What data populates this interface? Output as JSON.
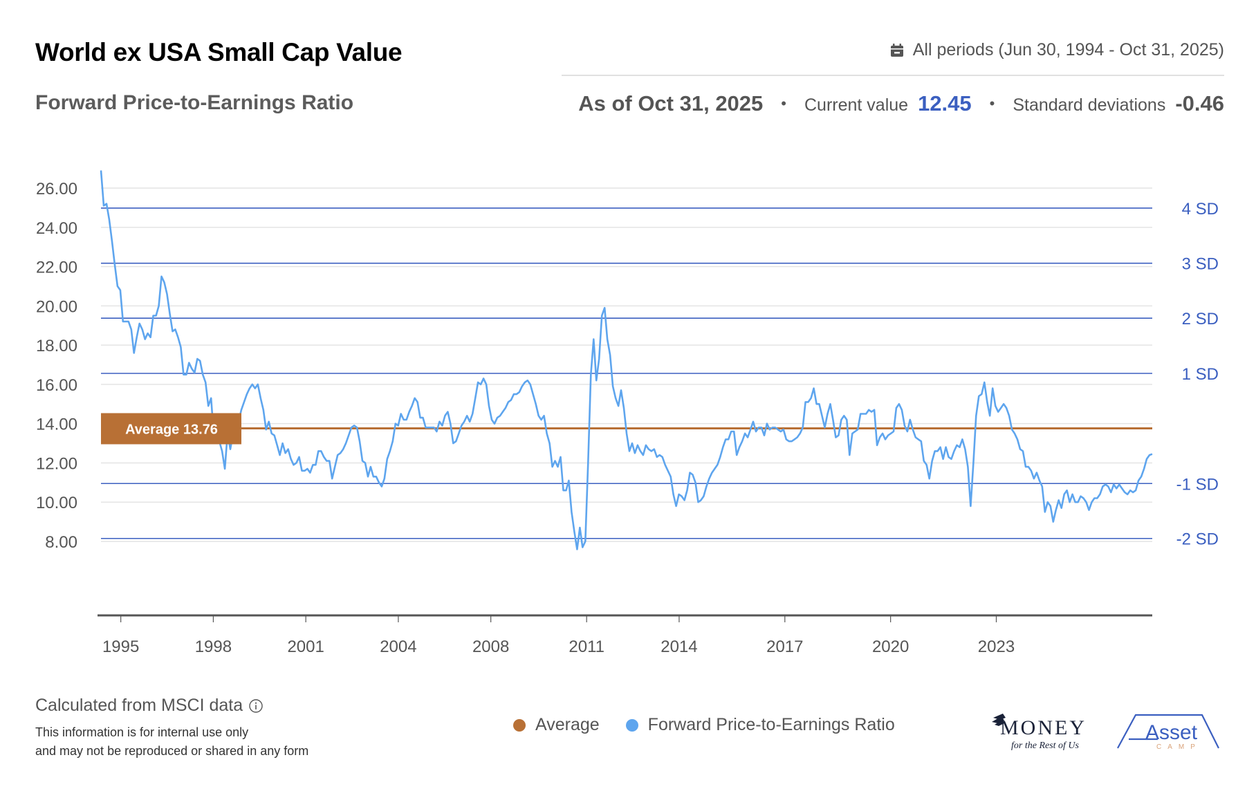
{
  "header": {
    "title": "World ex USA Small Cap Value",
    "subtitle": "Forward Price-to-Earnings Ratio",
    "period_icon": "calendar-icon",
    "period_label": "All periods (Jun 30, 1994 - Oct 31, 2025)",
    "as_of": "As of Oct 31, 2025",
    "separator": "•",
    "current_value_label": "Current value",
    "current_value": "12.45",
    "std_dev_label": "Standard deviations",
    "std_dev_value": "-0.46"
  },
  "colors": {
    "series": "#5ea5ee",
    "average": "#b87035",
    "sd_lines": "#3b5fc0",
    "grid": "#e4e4e4",
    "axis": "#555555",
    "current_value": "#3b5fc0"
  },
  "footer": {
    "source": "Calculated from MSCI data",
    "info_icon": "info-icon",
    "disclaimer_line1": "This information is for internal use only",
    "disclaimer_line2": "and may not be reproduced or shared in any form"
  },
  "logos": {
    "money_title": "MONEY",
    "money_subtitle": "for the Rest of Us",
    "asset_title": "Asset",
    "asset_subtitle": "CAMP"
  },
  "chart_data": {
    "type": "line",
    "title": "Forward Price-to-Earnings Ratio",
    "xlabel": "",
    "ylabel": "",
    "ylim": [
      6.0,
      27.0
    ],
    "x_range": [
      "1994-06",
      "2025-10"
    ],
    "y_ticks": [
      8,
      10,
      12,
      14,
      16,
      18,
      20,
      22,
      24,
      26
    ],
    "y_tick_labels": [
      "8.00",
      "10.00",
      "12.00",
      "14.00",
      "16.00",
      "18.00",
      "20.00",
      "22.00",
      "24.00",
      "26.00"
    ],
    "x_tick_labels": [
      "1995",
      "1998",
      "2001",
      "2004",
      "2008",
      "2011",
      "2014",
      "2017",
      "2020",
      "2023"
    ],
    "x_tick_positions_years": [
      1995.1,
      1997.9,
      2000.7,
      2003.5,
      2006.3,
      2009.2,
      2012.0,
      2015.2,
      2018.4,
      2021.6
    ],
    "grid": true,
    "legend": "bottom-center",
    "legend_entries": [
      {
        "name": "Average",
        "color": "#b87035"
      },
      {
        "name": "Forward Price-to-Earnings Ratio",
        "color": "#5ea5ee"
      }
    ],
    "average": {
      "label": "Average 13.76",
      "value": 13.76
    },
    "sd_bands": [
      {
        "label": "4 SD",
        "value": 24.98
      },
      {
        "label": "3 SD",
        "value": 22.17
      },
      {
        "label": "2 SD",
        "value": 19.37
      },
      {
        "label": "1 SD",
        "value": 16.56
      },
      {
        "label": "-1 SD",
        "value": 10.95
      },
      {
        "label": "-2 SD",
        "value": 8.15
      }
    ],
    "series": [
      {
        "name": "Forward Price-to-Earnings Ratio",
        "x_start": 1994.5,
        "x_step": 0.0833,
        "values": [
          26.9,
          25.1,
          25.2,
          24.4,
          23.3,
          22.1,
          21.0,
          20.8,
          19.2,
          19.2,
          19.2,
          18.8,
          17.6,
          18.4,
          19.1,
          18.8,
          18.3,
          18.6,
          18.4,
          19.5,
          19.5,
          20.0,
          21.5,
          21.2,
          20.6,
          19.6,
          18.7,
          18.8,
          18.4,
          17.9,
          16.5,
          16.5,
          17.1,
          16.8,
          16.6,
          17.3,
          17.2,
          16.5,
          16.1,
          14.9,
          15.3,
          13.4,
          13.0,
          13.1,
          12.6,
          11.7,
          13.5,
          12.7,
          13.5,
          13.5,
          14.1,
          14.7,
          15.1,
          15.5,
          15.8,
          16.0,
          15.8,
          16.0,
          15.3,
          14.7,
          13.7,
          14.1,
          13.5,
          13.4,
          12.9,
          12.4,
          13.0,
          12.5,
          12.7,
          12.2,
          11.9,
          12.0,
          12.3,
          11.6,
          11.6,
          11.7,
          11.5,
          11.9,
          11.9,
          12.6,
          12.6,
          12.3,
          12.1,
          12.1,
          11.2,
          11.8,
          12.4,
          12.5,
          12.7,
          13.0,
          13.4,
          13.8,
          13.9,
          13.8,
          13.1,
          12.1,
          12.0,
          11.3,
          11.8,
          11.3,
          11.3,
          11.0,
          10.8,
          11.2,
          12.2,
          12.6,
          13.1,
          14.0,
          13.9,
          14.5,
          14.2,
          14.2,
          14.6,
          14.9,
          15.3,
          15.1,
          14.3,
          14.3,
          13.8,
          13.8,
          13.8,
          13.8,
          13.6,
          14.1,
          13.9,
          14.4,
          14.6,
          14.0,
          13.0,
          13.1,
          13.5,
          13.9,
          14.1,
          14.4,
          14.1,
          14.5,
          15.3,
          16.1,
          16.0,
          16.3,
          16.0,
          14.9,
          14.2,
          14.0,
          14.3,
          14.4,
          14.6,
          14.8,
          15.1,
          15.2,
          15.5,
          15.5,
          15.6,
          15.9,
          16.1,
          16.2,
          16.0,
          15.5,
          15.0,
          14.4,
          14.2,
          14.4,
          13.5,
          13.0,
          11.8,
          12.1,
          11.8,
          12.3,
          10.6,
          10.6,
          11.1,
          9.5,
          8.5,
          7.6,
          8.7,
          7.7,
          8.0,
          12.0,
          16.5,
          18.3,
          16.2,
          17.3,
          19.5,
          19.9,
          18.3,
          17.5,
          15.9,
          15.3,
          14.9,
          15.7,
          14.8,
          13.5,
          12.6,
          13.0,
          12.5,
          12.9,
          12.6,
          12.4,
          12.9,
          12.7,
          12.6,
          12.7,
          12.3,
          12.4,
          12.3,
          11.9,
          11.6,
          11.3,
          10.4,
          9.8,
          10.4,
          10.3,
          10.1,
          10.6,
          11.5,
          11.4,
          11.0,
          10.0,
          10.1,
          10.3,
          10.8,
          11.2,
          11.5,
          11.7,
          11.9,
          12.3,
          12.8,
          13.2,
          13.2,
          13.6,
          13.6,
          12.4,
          12.8,
          13.1,
          13.5,
          13.3,
          13.7,
          14.1,
          13.6,
          13.8,
          13.8,
          13.4,
          14.0,
          13.7,
          13.8,
          13.8,
          13.7,
          13.6,
          13.7,
          13.2,
          13.1,
          13.1,
          13.2,
          13.3,
          13.5,
          13.8,
          15.1,
          15.1,
          15.3,
          15.8,
          15.0,
          15.0,
          14.4,
          13.8,
          14.5,
          15.0,
          14.2,
          13.3,
          13.4,
          14.2,
          14.4,
          14.2,
          12.4,
          13.5,
          13.6,
          13.7,
          14.5,
          14.5,
          14.5,
          14.7,
          14.6,
          14.7,
          12.9,
          13.3,
          13.5,
          13.2,
          13.4,
          13.5,
          13.6,
          14.8,
          15.0,
          14.7,
          13.9,
          13.6,
          14.2,
          13.7,
          13.3,
          13.2,
          13.1,
          12.1,
          11.9,
          11.2,
          12.1,
          12.6,
          12.6,
          12.8,
          12.2,
          12.8,
          12.3,
          12.2,
          12.6,
          12.9,
          12.8,
          13.2,
          12.7,
          11.8,
          9.8,
          12.0,
          14.4,
          15.4,
          15.5,
          16.1,
          15.1,
          14.4,
          15.8,
          14.9,
          14.6,
          14.8,
          15.0,
          14.8,
          14.4,
          13.7,
          13.5,
          13.2,
          12.7,
          12.6,
          11.8,
          11.8,
          11.6,
          11.2,
          11.5,
          11.1,
          10.8,
          9.5,
          10.0,
          9.8,
          9.0,
          9.6,
          10.1,
          9.7,
          10.4,
          10.6,
          10.0,
          10.4,
          10.0,
          10.0,
          10.3,
          10.2,
          10.0,
          9.6,
          10.0,
          10.2,
          10.2,
          10.4,
          10.8,
          10.9,
          10.8,
          10.5,
          10.9,
          10.7,
          10.9,
          10.7,
          10.5,
          10.4,
          10.6,
          10.5,
          10.6,
          11.1,
          11.3,
          11.7,
          12.2,
          12.4,
          12.45
        ]
      },
      {
        "name": "Average",
        "values_constant": 13.76
      }
    ]
  }
}
